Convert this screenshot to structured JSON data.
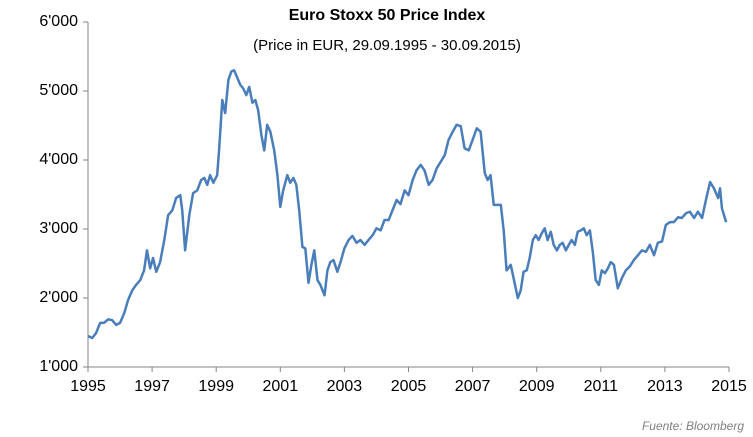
{
  "chart_data": {
    "type": "line",
    "title": "Euro Stoxx 50 Price Index",
    "subtitle": "(Price in EUR, 29.09.1995 - 30.09.2015)",
    "source": "Fuente: Bloomberg",
    "xlim": [
      1995,
      2015
    ],
    "xticks": [
      1995,
      1997,
      1999,
      2001,
      2003,
      2005,
      2007,
      2009,
      2011,
      2013,
      2015
    ],
    "ylim": [
      1000,
      6000
    ],
    "yticks": [
      {
        "value": 1000,
        "label": "1'000"
      },
      {
        "value": 2000,
        "label": "2'000"
      },
      {
        "value": 3000,
        "label": "3'000"
      },
      {
        "value": 4000,
        "label": "4'000"
      },
      {
        "value": 5000,
        "label": "5'000"
      },
      {
        "value": 6000,
        "label": "6'000"
      }
    ],
    "grid": false,
    "x": [
      1995.0,
      1995.13,
      1995.25,
      1995.38,
      1995.5,
      1995.63,
      1995.75,
      1995.88,
      1996.0,
      1996.13,
      1996.25,
      1996.38,
      1996.5,
      1996.63,
      1996.75,
      1996.84,
      1996.94,
      1997.03,
      1997.13,
      1997.25,
      1997.38,
      1997.5,
      1997.63,
      1997.75,
      1997.88,
      1997.94,
      1998.03,
      1998.16,
      1998.28,
      1998.41,
      1998.53,
      1998.63,
      1998.72,
      1998.81,
      1998.91,
      1999.03,
      1999.09,
      1999.19,
      1999.28,
      1999.38,
      1999.47,
      1999.56,
      1999.66,
      1999.75,
      1999.84,
      1999.94,
      2000.03,
      2000.13,
      2000.22,
      2000.31,
      2000.41,
      2000.5,
      2000.59,
      2000.69,
      2000.81,
      2000.91,
      2001.0,
      2001.09,
      2001.22,
      2001.31,
      2001.41,
      2001.5,
      2001.59,
      2001.69,
      2001.78,
      2001.88,
      2001.97,
      2002.06,
      2002.16,
      2002.25,
      2002.38,
      2002.47,
      2002.56,
      2002.66,
      2002.78,
      2002.88,
      2003.0,
      2003.13,
      2003.25,
      2003.38,
      2003.5,
      2003.63,
      2003.75,
      2003.88,
      2004.0,
      2004.13,
      2004.25,
      2004.38,
      2004.5,
      2004.63,
      2004.75,
      2004.88,
      2005.0,
      2005.13,
      2005.25,
      2005.38,
      2005.5,
      2005.63,
      2005.75,
      2005.88,
      2006.0,
      2006.13,
      2006.25,
      2006.38,
      2006.5,
      2006.63,
      2006.75,
      2006.88,
      2007.0,
      2007.13,
      2007.25,
      2007.38,
      2007.47,
      2007.56,
      2007.66,
      2007.78,
      2007.88,
      2007.97,
      2008.06,
      2008.19,
      2008.31,
      2008.41,
      2008.5,
      2008.59,
      2008.69,
      2008.78,
      2008.88,
      2008.97,
      2009.06,
      2009.16,
      2009.25,
      2009.34,
      2009.44,
      2009.53,
      2009.63,
      2009.72,
      2009.81,
      2009.91,
      2010.0,
      2010.09,
      2010.19,
      2010.28,
      2010.38,
      2010.47,
      2010.56,
      2010.66,
      2010.75,
      2010.84,
      2010.94,
      2011.03,
      2011.13,
      2011.22,
      2011.31,
      2011.41,
      2011.53,
      2011.66,
      2011.78,
      2011.91,
      2012.03,
      2012.16,
      2012.28,
      2012.41,
      2012.53,
      2012.66,
      2012.78,
      2012.91,
      2013.03,
      2013.16,
      2013.28,
      2013.41,
      2013.53,
      2013.66,
      2013.78,
      2013.91,
      2014.03,
      2014.16,
      2014.28,
      2014.41,
      2014.53,
      2014.66,
      2014.72,
      2014.78,
      2014.91
    ],
    "series": [
      {
        "name": "Euro Stoxx 50",
        "color": "#4a7ebb",
        "values": [
          1450,
          1420,
          1490,
          1640,
          1640,
          1690,
          1680,
          1610,
          1640,
          1780,
          1970,
          2110,
          2190,
          2260,
          2400,
          2690,
          2430,
          2580,
          2380,
          2520,
          2840,
          3200,
          3270,
          3450,
          3490,
          3270,
          2690,
          3200,
          3520,
          3560,
          3710,
          3740,
          3640,
          3780,
          3670,
          3780,
          4140,
          4870,
          4680,
          5160,
          5280,
          5300,
          5190,
          5090,
          5040,
          4940,
          5060,
          4830,
          4870,
          4720,
          4360,
          4140,
          4510,
          4410,
          4140,
          3780,
          3320,
          3560,
          3780,
          3670,
          3740,
          3640,
          3270,
          2740,
          2720,
          2220,
          2480,
          2690,
          2260,
          2190,
          2040,
          2400,
          2520,
          2550,
          2380,
          2520,
          2720,
          2840,
          2900,
          2800,
          2840,
          2770,
          2840,
          2910,
          3010,
          2980,
          3130,
          3130,
          3270,
          3420,
          3360,
          3560,
          3490,
          3710,
          3850,
          3930,
          3850,
          3640,
          3710,
          3880,
          3970,
          4070,
          4290,
          4410,
          4510,
          4490,
          4170,
          4140,
          4290,
          4460,
          4410,
          3810,
          3710,
          3780,
          3350,
          3350,
          3350,
          2980,
          2400,
          2480,
          2220,
          2000,
          2110,
          2380,
          2400,
          2580,
          2840,
          2910,
          2840,
          2940,
          3010,
          2840,
          2960,
          2770,
          2690,
          2770,
          2800,
          2690,
          2770,
          2840,
          2770,
          2960,
          2980,
          3010,
          2910,
          2980,
          2670,
          2260,
          2190,
          2400,
          2360,
          2430,
          2520,
          2480,
          2140,
          2290,
          2400,
          2460,
          2550,
          2620,
          2690,
          2670,
          2770,
          2620,
          2800,
          2820,
          3060,
          3100,
          3100,
          3170,
          3160,
          3230,
          3250,
          3160,
          3250,
          3160,
          3420,
          3680,
          3590,
          3450,
          3590,
          3300,
          3100
        ]
      }
    ]
  }
}
